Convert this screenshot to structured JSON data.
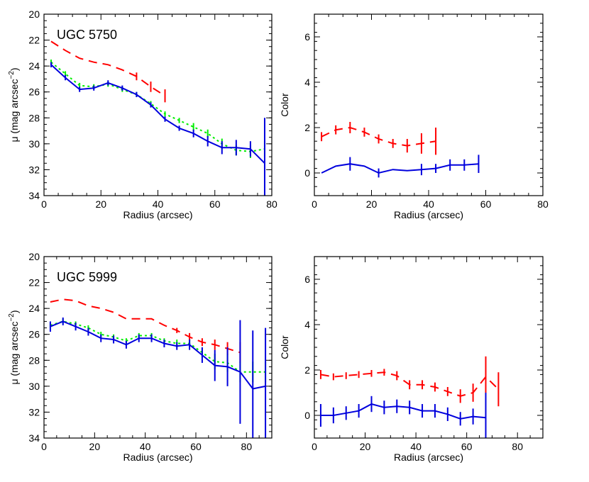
{
  "chart_data": [
    {
      "type": "line",
      "panel_label": "UGC 5750",
      "xlabel": "Radius (arcsec)",
      "ylabel": "μ (mag arcsec",
      "ylabel_sup": "−2",
      "ylabel_close": ")",
      "xlim": [
        0,
        80
      ],
      "ylim": [
        34,
        20
      ],
      "y_inverted": true,
      "xticks": [
        "0",
        "20",
        "40",
        "60",
        "80"
      ],
      "yticks": [
        "20",
        "22",
        "24",
        "26",
        "28",
        "30",
        "32",
        "34"
      ],
      "series": [
        {
          "color": "#ff0000",
          "style": "dashed",
          "x": [
            2.5,
            7.5,
            12.5,
            17.5,
            22.5,
            27.5,
            32.5,
            37.5,
            42.5
          ],
          "y": [
            22.1,
            22.8,
            23.4,
            23.7,
            23.9,
            24.3,
            24.8,
            25.6,
            26.3
          ],
          "err": [
            0,
            0,
            0,
            0,
            0,
            0,
            0.3,
            0.4,
            0.5
          ]
        },
        {
          "color": "#00ee00",
          "style": "dotted",
          "x": [
            2.5,
            7.5,
            12.5,
            17.5,
            22.5,
            27.5,
            32.5,
            37.5,
            42.5,
            47.5,
            52.5,
            57.5,
            62.5,
            67.5,
            72.5,
            77.5
          ],
          "y": [
            23.7,
            24.6,
            25.5,
            25.6,
            25.4,
            25.8,
            26.2,
            26.9,
            27.7,
            28.2,
            28.7,
            29.2,
            30.0,
            30.5,
            30.6,
            30.4
          ],
          "err": [
            0.2,
            0.2,
            0.2,
            0.2,
            0.2,
            0.2,
            0.2,
            0.2,
            0.2,
            0.2,
            0.3,
            0.3,
            0.4,
            0.4,
            0.5,
            0.6
          ]
        },
        {
          "color": "#0000dd",
          "style": "solid",
          "x": [
            2.5,
            7.5,
            12.5,
            17.5,
            22.5,
            27.5,
            32.5,
            37.5,
            42.5,
            47.5,
            52.5,
            57.5,
            62.5,
            67.5,
            72.5,
            77.5
          ],
          "y": [
            23.9,
            24.9,
            25.8,
            25.7,
            25.3,
            25.7,
            26.2,
            27.0,
            28.1,
            28.8,
            29.2,
            29.8,
            30.3,
            30.3,
            30.4,
            31.5
          ],
          "err": [
            0.2,
            0.2,
            0.2,
            0.2,
            0.2,
            0.2,
            0.2,
            0.2,
            0.2,
            0.2,
            0.3,
            0.4,
            0.5,
            0.6,
            0.6,
            3.5
          ]
        }
      ]
    },
    {
      "type": "line",
      "panel_label": "",
      "xlabel": "Radius (arcsec)",
      "ylabel": "Color",
      "xlim": [
        0,
        80
      ],
      "ylim": [
        -1,
        7
      ],
      "y_inverted": false,
      "xticks": [
        "0",
        "20",
        "40",
        "60",
        "80"
      ],
      "yticks": [
        "0",
        "2",
        "4",
        "6"
      ],
      "series": [
        {
          "color": "#ff0000",
          "style": "dashed",
          "x": [
            2.5,
            7.5,
            12.5,
            17.5,
            22.5,
            27.5,
            32.5,
            37.5,
            42.5
          ],
          "y": [
            1.6,
            1.9,
            2.0,
            1.8,
            1.5,
            1.3,
            1.2,
            1.3,
            1.4
          ],
          "err": [
            0.2,
            0.2,
            0.25,
            0.2,
            0.2,
            0.2,
            0.3,
            0.45,
            0.6
          ]
        },
        {
          "color": "#0000dd",
          "style": "solid",
          "x": [
            2.5,
            7.5,
            12.5,
            17.5,
            22.5,
            27.5,
            32.5,
            37.5,
            42.5,
            47.5,
            52.5,
            57.5
          ],
          "y": [
            0.0,
            0.3,
            0.4,
            0.3,
            0.0,
            0.15,
            0.1,
            0.15,
            0.2,
            0.35,
            0.35,
            0.4
          ],
          "err": [
            0,
            0,
            0.3,
            0,
            0.2,
            0,
            0,
            0.25,
            0.2,
            0.25,
            0.25,
            0.4
          ]
        }
      ]
    },
    {
      "type": "line",
      "panel_label": "UGC 5999",
      "xlabel": "Radius (arcsec)",
      "ylabel": "μ (mag arcsec",
      "ylabel_sup": "−2",
      "ylabel_close": ")",
      "xlim": [
        0,
        90
      ],
      "ylim": [
        34,
        20
      ],
      "y_inverted": true,
      "xticks": [
        "0",
        "20",
        "40",
        "60",
        "80"
      ],
      "yticks": [
        "20",
        "22",
        "24",
        "26",
        "28",
        "30",
        "32",
        "34"
      ],
      "series": [
        {
          "color": "#ff0000",
          "style": "dashed",
          "x": [
            2.5,
            7.5,
            12.5,
            17.5,
            22.5,
            27.5,
            32.5,
            37.5,
            42.5,
            47.5,
            52.5,
            57.5,
            62.5,
            67.5,
            72.5,
            77.5
          ],
          "y": [
            23.5,
            23.3,
            23.4,
            23.8,
            24.0,
            24.3,
            24.8,
            24.8,
            24.8,
            25.3,
            25.7,
            26.2,
            26.6,
            26.8,
            27.1,
            27.4
          ],
          "err": [
            0,
            0,
            0,
            0,
            0,
            0,
            0,
            0,
            0,
            0,
            0.2,
            0.3,
            0.3,
            0.4,
            0.5,
            0.8
          ]
        },
        {
          "color": "#00ee00",
          "style": "dotted",
          "x": [
            2.5,
            7.5,
            12.5,
            17.5,
            22.5,
            27.5,
            32.5,
            37.5,
            42.5,
            47.5,
            52.5,
            57.5,
            62.5,
            67.5,
            72.5,
            77.5,
            82.5,
            87.5
          ],
          "y": [
            25.3,
            25.0,
            25.2,
            25.5,
            26.0,
            26.2,
            26.5,
            26.1,
            26.1,
            26.5,
            26.7,
            26.7,
            27.4,
            28.1,
            28.2,
            28.9,
            28.9,
            28.9
          ],
          "err": [
            0.2,
            0.2,
            0.2,
            0.2,
            0.2,
            0.2,
            0.2,
            0.2,
            0.2,
            0.2,
            0.3,
            0.3,
            0.4,
            0.6,
            0.7,
            0.8,
            0.8,
            0.8
          ]
        },
        {
          "color": "#0000dd",
          "style": "solid",
          "x": [
            2.5,
            7.5,
            12.5,
            17.5,
            22.5,
            27.5,
            32.5,
            37.5,
            42.5,
            47.5,
            52.5,
            57.5,
            62.5,
            67.5,
            72.5,
            77.5,
            82.5,
            87.5
          ],
          "y": [
            25.4,
            25.0,
            25.4,
            25.8,
            26.3,
            26.4,
            26.8,
            26.3,
            26.3,
            26.7,
            26.9,
            26.8,
            27.6,
            28.4,
            28.5,
            28.9,
            30.2,
            30.0
          ],
          "err": [
            0.4,
            0.3,
            0.3,
            0.3,
            0.3,
            0.3,
            0.3,
            0.3,
            0.3,
            0.3,
            0.3,
            0.4,
            0.6,
            1.2,
            1.5,
            4,
            4.5,
            4.5
          ]
        }
      ]
    },
    {
      "type": "line",
      "panel_label": "",
      "xlabel": "Radius (arcsec)",
      "ylabel": "Color",
      "xlim": [
        0,
        90
      ],
      "ylim": [
        -1,
        7
      ],
      "y_inverted": false,
      "xticks": [
        "0",
        "20",
        "40",
        "60",
        "80"
      ],
      "yticks": [
        "0",
        "2",
        "4",
        "6"
      ],
      "series": [
        {
          "color": "#ff0000",
          "style": "dashed",
          "x": [
            2.5,
            7.5,
            12.5,
            17.5,
            22.5,
            27.5,
            32.5,
            37.5,
            42.5,
            47.5,
            52.5,
            57.5,
            62.5,
            67.5,
            72.5
          ],
          "y": [
            1.8,
            1.7,
            1.75,
            1.8,
            1.85,
            1.9,
            1.75,
            1.35,
            1.35,
            1.25,
            1.05,
            0.85,
            1.0,
            1.7,
            1.15
          ],
          "err": [
            0.2,
            0.15,
            0.15,
            0.15,
            0.15,
            0.15,
            0.2,
            0.2,
            0.2,
            0.2,
            0.2,
            0.3,
            0.4,
            0.9,
            0.75
          ]
        },
        {
          "color": "#0000dd",
          "style": "solid",
          "x": [
            2.5,
            7.5,
            12.5,
            17.5,
            22.5,
            27.5,
            32.5,
            37.5,
            42.5,
            47.5,
            52.5,
            57.5,
            62.5,
            67.5
          ],
          "y": [
            0.0,
            0.0,
            0.1,
            0.2,
            0.5,
            0.35,
            0.4,
            0.35,
            0.2,
            0.2,
            0.05,
            -0.15,
            -0.05,
            -0.1
          ],
          "err": [
            0.5,
            0.35,
            0.3,
            0.3,
            0.35,
            0.3,
            0.3,
            0.3,
            0.3,
            0.3,
            0.3,
            0.3,
            0.35,
            1.1
          ]
        }
      ]
    }
  ]
}
